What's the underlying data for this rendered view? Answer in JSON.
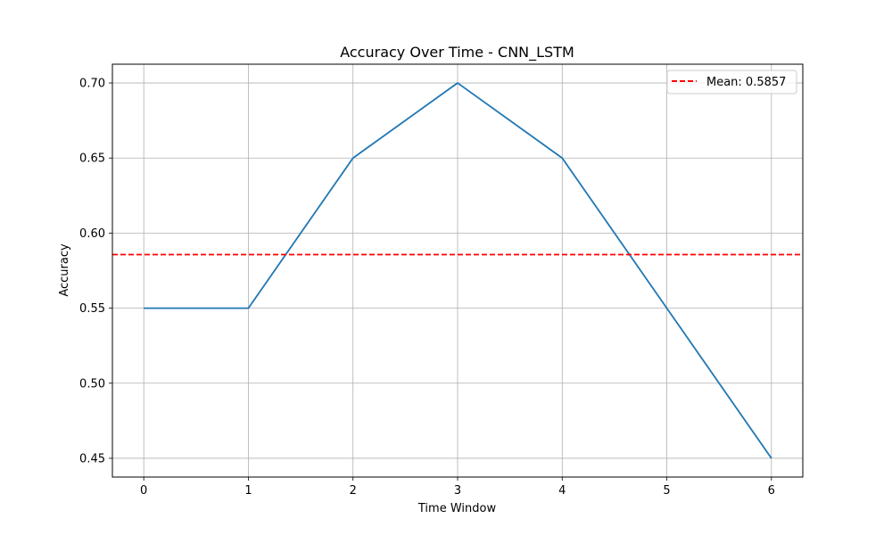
{
  "chart_data": {
    "type": "line",
    "title": "Accuracy Over Time - CNN_LSTM",
    "xlabel": "Time Window",
    "ylabel": "Accuracy",
    "x": [
      0,
      1,
      2,
      3,
      4,
      5,
      6
    ],
    "series": [
      {
        "values": [
          0.55,
          0.55,
          0.65,
          0.7,
          0.65,
          0.55,
          0.45
        ],
        "color": "#1f77b4",
        "style": "solid"
      }
    ],
    "reference_line": {
      "label": "Mean: 0.5857",
      "value": 0.5857,
      "color": "#ff0000",
      "style": "dashed"
    },
    "xlim": [
      -0.3,
      6.3
    ],
    "ylim": [
      0.4375,
      0.7125
    ],
    "xticks": [
      0,
      1,
      2,
      3,
      4,
      5,
      6
    ],
    "xtick_labels": [
      "0",
      "1",
      "2",
      "3",
      "4",
      "5",
      "6"
    ],
    "yticks": [
      0.45,
      0.5,
      0.55,
      0.6,
      0.65,
      0.7
    ],
    "ytick_labels": [
      "0.45",
      "0.50",
      "0.55",
      "0.60",
      "0.65",
      "0.70"
    ],
    "grid": true,
    "legend_position": "top-right"
  }
}
